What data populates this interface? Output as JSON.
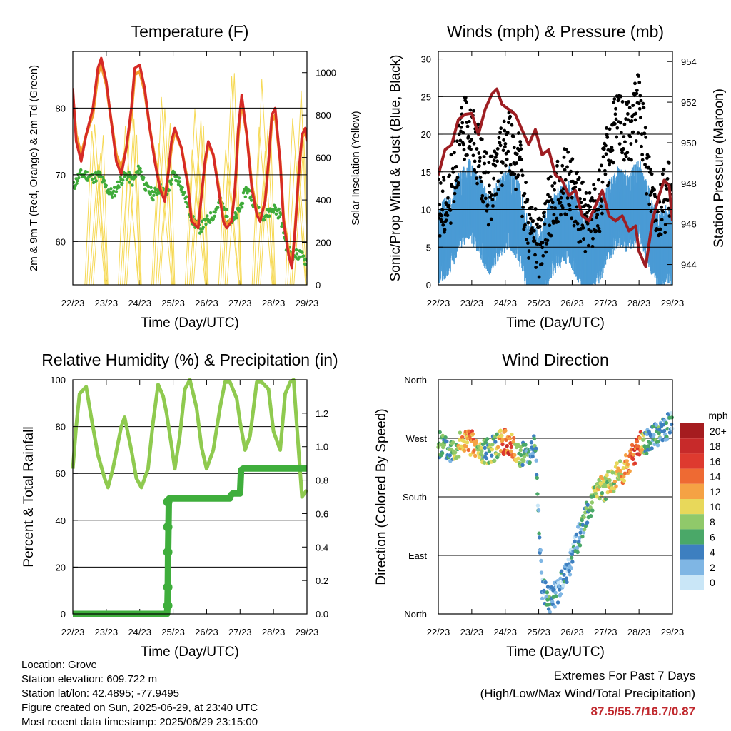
{
  "x_ticks": [
    "22/23",
    "23/23",
    "24/23",
    "25/23",
    "26/23",
    "27/23",
    "28/23",
    "29/23"
  ],
  "x_title": "Time (Day/UTC)",
  "colors": {
    "temp_2m": "#d62a26",
    "temp_9m": "#f39c2d",
    "dewpoint": "#3fab3a",
    "solar": "#f6d955",
    "wind": "#4a9bd5",
    "gust": "#000000",
    "pressure": "#9e1d22",
    "rh": "#8fca4f",
    "rain": "#3fae3c"
  },
  "chart_data": [
    {
      "type": "line",
      "title": "Temperature (F)",
      "xlabel": "Time (Day/UTC)",
      "ylabel": "2m & 9m T (Red, Orange) & 2m Td (Green)",
      "y2label": "Solar Insolation (Yellow)",
      "ylim": [
        53.5,
        88.5
      ],
      "yticks": [
        60,
        70,
        80
      ],
      "y2lim": [
        0,
        1100
      ],
      "y2ticks": [
        0,
        200,
        400,
        600,
        800,
        1000
      ],
      "xlim": [
        0,
        7
      ],
      "grid": "horizontal at 60, 70, 80",
      "series": [
        {
          "key": "temp_2m",
          "axis": "left",
          "x": [
            0,
            0.1,
            0.25,
            0.4,
            0.6,
            0.75,
            0.85,
            1.0,
            1.15,
            1.3,
            1.45,
            1.6,
            1.75,
            1.85,
            2.0,
            2.15,
            2.3,
            2.45,
            2.6,
            2.75,
            2.85,
            2.95,
            3.05,
            3.25,
            3.45,
            3.55,
            3.75,
            3.85,
            3.95,
            4.05,
            4.2,
            4.35,
            4.5,
            4.6,
            4.75,
            4.85,
            4.95,
            5.05,
            5.2,
            5.35,
            5.5,
            5.6,
            5.75,
            5.85,
            5.95,
            6.05,
            6.2,
            6.3,
            6.45,
            6.55,
            6.65,
            6.75,
            6.85,
            6.95,
            7.0
          ],
          "y": [
            83,
            75,
            72,
            76,
            80,
            86,
            87.5,
            84,
            78,
            72,
            70,
            74,
            80,
            86,
            86.5,
            83,
            77,
            72,
            68,
            66,
            70,
            75,
            77,
            74,
            68,
            63,
            62,
            67,
            72,
            75,
            73,
            68,
            63,
            62,
            63,
            68,
            77,
            82,
            76,
            68,
            64,
            63,
            66,
            72,
            79,
            80,
            72,
            63,
            58,
            56,
            62,
            70,
            76,
            77,
            75
          ]
        },
        {
          "key": "temp_9m",
          "axis": "left",
          "x": [
            0,
            0.1,
            0.25,
            0.4,
            0.6,
            0.75,
            0.85,
            1.0,
            1.15,
            1.3,
            1.45,
            1.6,
            1.75,
            1.85,
            2.0,
            2.15,
            2.3,
            2.45,
            2.6,
            2.75,
            2.85,
            2.95,
            3.05,
            3.25,
            3.45,
            3.55,
            3.75,
            3.85,
            3.95,
            4.05,
            4.2,
            4.35,
            4.5,
            4.6,
            4.75,
            4.85,
            4.95,
            5.05,
            5.2,
            5.35,
            5.5,
            5.6,
            5.75,
            5.85,
            5.95,
            6.05,
            6.2,
            6.3,
            6.45,
            6.55,
            6.65,
            6.75,
            6.85,
            6.95,
            7.0
          ],
          "y": [
            82,
            76,
            73,
            76,
            79,
            85,
            86.5,
            83.5,
            78,
            73,
            71,
            74,
            79,
            85,
            85.5,
            82.5,
            77,
            72.5,
            68.5,
            66.5,
            70,
            74,
            76.5,
            74,
            68.5,
            63.5,
            62.5,
            67,
            71.5,
            74.5,
            73,
            68.5,
            63.5,
            62.5,
            63.5,
            68,
            76,
            81,
            76,
            68.5,
            64.5,
            63.5,
            66,
            71.5,
            78,
            79,
            72,
            63.5,
            58.5,
            56.5,
            62,
            69.5,
            75.5,
            76.5,
            75
          ]
        },
        {
          "key": "dewpoint",
          "axis": "left",
          "x": [
            0,
            0.2,
            0.4,
            0.6,
            0.8,
            1.0,
            1.2,
            1.4,
            1.6,
            1.8,
            2.0,
            2.2,
            2.4,
            2.6,
            2.8,
            3.0,
            3.2,
            3.4,
            3.6,
            3.8,
            4.0,
            4.2,
            4.4,
            4.6,
            4.8,
            5.0,
            5.2,
            5.4,
            5.6,
            5.8,
            6.0,
            6.2,
            6.4,
            6.6,
            6.8,
            7.0
          ],
          "y": [
            68,
            70,
            70,
            69.5,
            70,
            68,
            67,
            69,
            70,
            69,
            71,
            68,
            67,
            68,
            67,
            70,
            69,
            66,
            63,
            62,
            63,
            64,
            66,
            64,
            63,
            65,
            68,
            66,
            64,
            64,
            65,
            64,
            59,
            58,
            58,
            57
          ]
        },
        {
          "key": "solar",
          "axis": "right",
          "style": "thin daily pulses",
          "x": [
            0,
            0.45,
            0.75,
            1.05,
            1.4,
            1.45,
            1.75,
            2.05,
            2.4,
            2.45,
            2.75,
            3.05,
            3.4,
            3.45,
            3.75,
            4.05,
            4.4,
            4.45,
            4.75,
            5.05,
            5.4,
            5.45,
            5.75,
            6.05,
            6.4,
            6.45,
            6.75,
            7.0
          ],
          "y": [
            0,
            0,
            940,
            0,
            0,
            0,
            960,
            0,
            0,
            0,
            980,
            0,
            0,
            0,
            970,
            0,
            0,
            0,
            1010,
            0,
            0,
            0,
            990,
            0,
            0,
            0,
            920,
            550
          ]
        }
      ]
    },
    {
      "type": "scatter",
      "title": "Winds (mph) & Pressure (mb)",
      "xlabel": "Time (Day/UTC)",
      "ylabel": "Sonic/Prop Wind & Gust (Blue, Black)",
      "y2label": "Station Pressure (Maroon)",
      "ylim": [
        0,
        31
      ],
      "yticks": [
        0,
        5,
        10,
        15,
        20,
        25,
        30
      ],
      "y2lim": [
        943,
        954.5
      ],
      "y2ticks": [
        944,
        946,
        948,
        950,
        952,
        954
      ],
      "xlim": [
        0,
        7
      ],
      "grid": "horizontal at 5, 10, 15, 20, 25, 30",
      "series": [
        {
          "key": "wind",
          "axis": "left",
          "style": "dense band",
          "x": [
            0,
            0.3,
            0.6,
            0.9,
            1.2,
            1.5,
            1.8,
            2.1,
            2.4,
            2.7,
            3.0,
            3.3,
            3.6,
            3.9,
            4.2,
            4.5,
            4.8,
            5.1,
            5.4,
            5.7,
            6.0,
            6.3,
            6.6,
            6.9,
            7.0
          ],
          "y": [
            6,
            7,
            10,
            12,
            10,
            7,
            9,
            11,
            9,
            4,
            2,
            6,
            8,
            9,
            6,
            4,
            6,
            9,
            11,
            10,
            12,
            8,
            5,
            6,
            5
          ]
        },
        {
          "key": "gust",
          "axis": "left",
          "style": "scattered points",
          "x": [
            0,
            0.3,
            0.6,
            0.9,
            1.2,
            1.5,
            1.8,
            2.1,
            2.4,
            2.7,
            3.0,
            3.3,
            3.6,
            3.9,
            4.2,
            4.5,
            4.8,
            5.1,
            5.4,
            5.7,
            6.0,
            6.3,
            6.6,
            6.9,
            7.0
          ],
          "y": [
            10,
            11,
            18,
            22,
            17,
            12,
            16,
            20,
            16,
            8,
            5,
            10,
            13,
            14,
            10,
            8,
            11,
            18,
            22,
            20,
            24,
            14,
            10,
            12,
            9
          ]
        },
        {
          "key": "pressure",
          "axis": "right",
          "x": [
            0,
            0.2,
            0.4,
            0.6,
            0.8,
            1.0,
            1.2,
            1.4,
            1.6,
            1.75,
            1.9,
            2.1,
            2.3,
            2.5,
            2.7,
            2.9,
            3.1,
            3.3,
            3.5,
            3.7,
            3.9,
            4.1,
            4.3,
            4.5,
            4.7,
            4.9,
            5.1,
            5.3,
            5.5,
            5.7,
            5.9,
            6.0,
            6.2,
            6.4,
            6.6,
            6.75,
            6.9,
            7.0
          ],
          "y": [
            948.5,
            949.5,
            950,
            951,
            951.5,
            951.3,
            950.5,
            951.5,
            952.5,
            952.5,
            952,
            951.5,
            951.5,
            950.5,
            950,
            950.5,
            949.5,
            949.5,
            948.5,
            948,
            947.5,
            947.5,
            946.5,
            946,
            947,
            947.5,
            946.5,
            946,
            946.5,
            945.5,
            946,
            944.5,
            944,
            946,
            947.5,
            948,
            948,
            946
          ]
        }
      ]
    },
    {
      "type": "line",
      "title": "Relative Humidity (%) & Precipitation (in)",
      "xlabel": "Time (Day/UTC)",
      "ylabel": "Percent & Total Rainfall",
      "ylim": [
        0,
        100
      ],
      "yticks": [
        0,
        20,
        40,
        60,
        80,
        100
      ],
      "y2lim": [
        0,
        1.4
      ],
      "y2ticks": [
        0.0,
        0.2,
        0.4,
        0.6,
        0.8,
        1.0,
        1.2
      ],
      "xlim": [
        0,
        7
      ],
      "grid": "horizontal at 20, 40, 60, 80",
      "series": [
        {
          "key": "rh",
          "axis": "left",
          "x": [
            0,
            0.1,
            0.2,
            0.4,
            0.55,
            0.75,
            0.95,
            1.05,
            1.2,
            1.45,
            1.55,
            1.75,
            1.9,
            2.05,
            2.25,
            2.4,
            2.55,
            2.7,
            2.8,
            2.95,
            3.05,
            3.2,
            3.35,
            3.5,
            3.7,
            3.85,
            4.0,
            4.2,
            4.4,
            4.55,
            4.7,
            4.9,
            5.0,
            5.15,
            5.3,
            5.5,
            5.65,
            5.85,
            6.0,
            6.2,
            6.35,
            6.5,
            6.6,
            6.7,
            6.85,
            7.0
          ],
          "y": [
            62,
            80,
            94,
            97,
            84,
            68,
            58,
            54,
            62,
            80,
            84,
            70,
            58,
            54,
            62,
            82,
            98,
            93,
            86,
            72,
            62,
            76,
            96,
            100,
            88,
            71,
            62,
            70,
            88,
            99,
            99,
            92,
            82,
            70,
            76,
            99,
            99,
            96,
            78,
            70,
            94,
            99,
            100,
            80,
            50,
            53
          ]
        },
        {
          "key": "rain",
          "axis": "right",
          "style": "step",
          "x": [
            0,
            2.82,
            2.83,
            2.84,
            2.85,
            2.86,
            2.87,
            2.88,
            4.7,
            4.72,
            4.78,
            5.0,
            5.03,
            5.1,
            7.0
          ],
          "y": [
            0,
            0,
            0.05,
            0.16,
            0.37,
            0.52,
            0.67,
            0.69,
            0.69,
            0.71,
            0.72,
            0.72,
            0.86,
            0.87,
            0.87
          ]
        }
      ]
    },
    {
      "type": "scatter",
      "title": "Wind Direction",
      "xlabel": "Time (Day/UTC)",
      "ylabel": "Direction (Colored By Speed)",
      "yticks": [
        "North",
        "East",
        "South",
        "West",
        "North"
      ],
      "ylim": [
        0,
        360
      ],
      "xlim": [
        0,
        7
      ],
      "grid": "horizontal at each cardinal direction",
      "legend_title": "mph",
      "legend_labels": [
        "20+",
        "18",
        "16",
        "14",
        "12",
        "10",
        "8",
        "6",
        "4",
        "2",
        "0"
      ],
      "legend_colors": [
        "#a51c1f",
        "#c72a2a",
        "#de3a2f",
        "#ee6a33",
        "#f5a244",
        "#e8d85a",
        "#90c96a",
        "#4aa868",
        "#3d7fc0",
        "#7fb6e4",
        "#c9e6f7"
      ],
      "series": [
        {
          "key": "direction",
          "x": [
            0.1,
            0.3,
            0.5,
            0.8,
            1.0,
            1.2,
            1.4,
            1.7,
            1.9,
            2.1,
            2.3,
            2.6,
            2.9,
            3.1,
            3.3,
            3.5,
            3.8,
            4.0,
            4.2,
            4.4,
            4.6,
            4.8,
            5.0,
            5.2,
            5.4,
            5.6,
            5.8,
            6.0,
            6.2,
            6.4,
            6.6,
            6.8,
            7.0
          ],
          "y": [
            260,
            250,
            255,
            265,
            262,
            250,
            248,
            255,
            265,
            262,
            250,
            245,
            260,
            40,
            20,
            30,
            60,
            90,
            120,
            150,
            175,
            190,
            195,
            205,
            215,
            225,
            245,
            260,
            265,
            270,
            275,
            285,
            300
          ],
          "speed": [
            6,
            4,
            8,
            12,
            14,
            8,
            6,
            7,
            13,
            15,
            10,
            5,
            4,
            3,
            6,
            3,
            2,
            3,
            4,
            6,
            8,
            10,
            8,
            9,
            10,
            12,
            14,
            16,
            5,
            4,
            6,
            4,
            3
          ]
        }
      ]
    }
  ],
  "info": {
    "location": "Location: Grove",
    "elevation": "Station elevation: 609.722 m",
    "latlon": "Station lat/lon: 42.4895; -77.9495",
    "created": "Figure created on Sun, 2025-06-29, at 23:40 UTC",
    "recent": "Most recent data timestamp: 2025/06/29 23:15:00",
    "extremes_title": "Extremes For Past 7 Days",
    "extremes_sub": "(High/Low/Max Wind/Total Precipitation)",
    "extremes_value": "87.5/55.7/16.7/0.87"
  }
}
